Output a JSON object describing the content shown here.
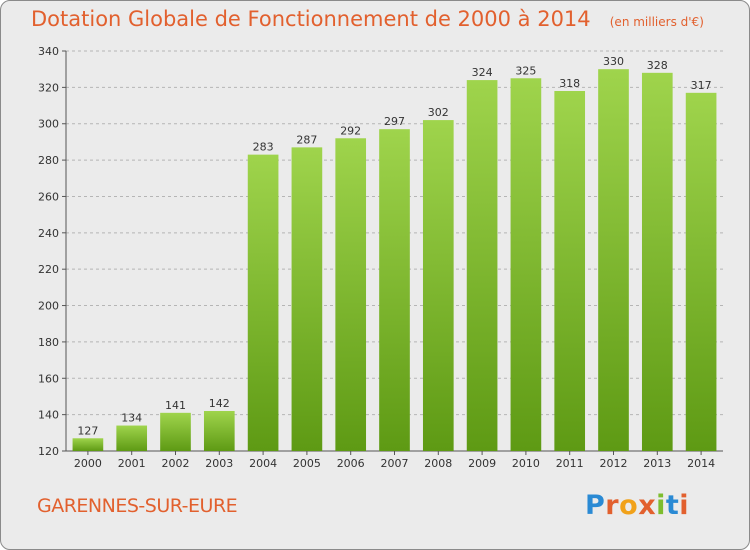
{
  "chart_data": {
    "type": "bar",
    "title": "Dotation Globale de Fonctionnement de 2000 à 2014",
    "subtitle": "(en milliers d'€)",
    "categories": [
      "2000",
      "2001",
      "2002",
      "2003",
      "2004",
      "2005",
      "2006",
      "2007",
      "2008",
      "2009",
      "2010",
      "2011",
      "2012",
      "2013",
      "2014"
    ],
    "values": [
      127,
      134,
      141,
      142,
      283,
      287,
      292,
      297,
      302,
      324,
      325,
      318,
      330,
      328,
      317
    ],
    "ylim": [
      120,
      340
    ],
    "yticks": [
      120,
      140,
      160,
      180,
      200,
      220,
      240,
      260,
      280,
      300,
      320,
      340
    ],
    "grid": true,
    "bar_color": "#7dbd2e",
    "title_color": "#e2602e"
  },
  "footer": {
    "city": "GARENNES-SUR-EURE",
    "brand": "Proxiti"
  }
}
